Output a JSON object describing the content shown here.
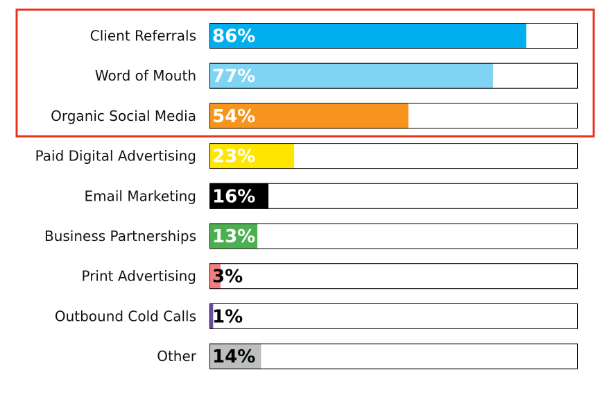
{
  "chart_data": {
    "type": "bar",
    "orientation": "horizontal",
    "categories": [
      "Client Referrals",
      "Word of Mouth",
      "Organic Social Media",
      "Paid Digital Advertising",
      "Email Marketing",
      "Business Partnerships",
      "Print Advertising",
      "Outbound Cold Calls",
      "Other"
    ],
    "values": [
      86,
      77,
      54,
      23,
      16,
      13,
      3,
      1,
      14
    ],
    "value_labels": [
      "86%",
      "77%",
      "54%",
      "23%",
      "16%",
      "13%",
      "3%",
      "1%",
      "14%"
    ],
    "xlim": [
      0,
      100
    ],
    "bar_colors": [
      "#00aeef",
      "#7fd3f3",
      "#f7941d",
      "#ffe600",
      "#000000",
      "#4cb050",
      "#f08080",
      "#6a4c9c",
      "#bcbec0"
    ],
    "value_label_colors": [
      "#ffffff",
      "#ffffff",
      "#ffffff",
      "#ffffff",
      "#ffffff",
      "#ffffff",
      "#000000",
      "#000000",
      "#000000"
    ],
    "grid": false,
    "legend": "none",
    "highlight": {
      "categories": [
        "Client Referrals",
        "Word of Mouth",
        "Organic Social Media"
      ],
      "color": "#e8331f"
    }
  }
}
